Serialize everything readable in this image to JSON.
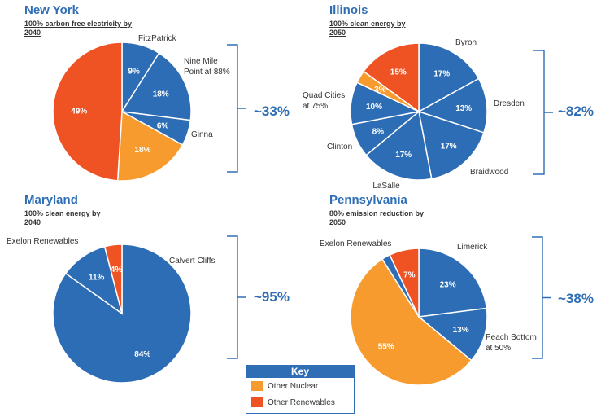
{
  "colors": {
    "exelon_nuclear": "#2d6db5",
    "other_nuclear": "#f89b2e",
    "other_renewables": "#f05323",
    "accent": "#2f6eb5",
    "bracket": "#2f6eb5"
  },
  "chart_data": [
    {
      "type": "pie",
      "title": "New York",
      "subtitle": "100% carbon free electricity by 2040",
      "total_label": "~33%",
      "slices": [
        {
          "label": "FitzPatrick",
          "value": 9,
          "display": "9%",
          "category": "exelon_nuclear"
        },
        {
          "label": "Nine Mile Point at 88%",
          "value": 18,
          "display": "18%",
          "category": "exelon_nuclear"
        },
        {
          "label": "Ginna",
          "value": 6,
          "display": "6%",
          "category": "exelon_nuclear"
        },
        {
          "label": "",
          "value": 18,
          "display": "18%",
          "category": "other_nuclear"
        },
        {
          "label": "",
          "value": 49,
          "display": "49%",
          "category": "other_renewables"
        }
      ]
    },
    {
      "type": "pie",
      "title": "Illinois",
      "subtitle": "100% clean energy by 2050",
      "total_label": "~82%",
      "slices": [
        {
          "label": "Byron",
          "value": 17,
          "display": "17%",
          "category": "exelon_nuclear"
        },
        {
          "label": "Dresden",
          "value": 13,
          "display": "13%",
          "category": "exelon_nuclear"
        },
        {
          "label": "Braidwood",
          "value": 17,
          "display": "17%",
          "category": "exelon_nuclear"
        },
        {
          "label": "LaSalle",
          "value": 17,
          "display": "17%",
          "category": "exelon_nuclear"
        },
        {
          "label": "Clinton",
          "value": 8,
          "display": "8%",
          "category": "exelon_nuclear"
        },
        {
          "label": "Quad Cities at 75%",
          "value": 10,
          "display": "10%",
          "category": "exelon_nuclear"
        },
        {
          "label": "",
          "value": 3,
          "display": "3%",
          "category": "other_nuclear"
        },
        {
          "label": "",
          "value": 15,
          "display": "15%",
          "category": "other_renewables"
        }
      ]
    },
    {
      "type": "pie",
      "title": "Maryland",
      "subtitle": "100% clean energy by 2040",
      "total_label": "~95%",
      "slices": [
        {
          "label": "Calvert Cliffs",
          "value": 84,
          "display": "84%",
          "category": "exelon_nuclear"
        },
        {
          "label": "Exelon Renewables",
          "value": 11,
          "display": "11%",
          "category": "exelon_nuclear"
        },
        {
          "label": "",
          "value": 4,
          "display": "4%",
          "category": "other_renewables"
        }
      ]
    },
    {
      "type": "pie",
      "title": "Pennsylvania",
      "subtitle": "80% emission reduction by 2050",
      "total_label": "~38%",
      "slices": [
        {
          "label": "Limerick",
          "value": 23,
          "display": "23%",
          "category": "exelon_nuclear"
        },
        {
          "label": "Peach Bottom at 50%",
          "value": 13,
          "display": "13%",
          "category": "exelon_nuclear"
        },
        {
          "label": "",
          "value": 55,
          "display": "55%",
          "category": "other_nuclear"
        },
        {
          "label": "Exelon Renewables",
          "value": 2,
          "display": "",
          "category": "exelon_nuclear"
        },
        {
          "label": "",
          "value": 7,
          "display": "7%",
          "category": "other_renewables"
        }
      ]
    }
  ],
  "key": {
    "title": "Key",
    "items": [
      {
        "label": "Other Nuclear",
        "category": "other_nuclear"
      },
      {
        "label": "Other Renewables",
        "category": "other_renewables"
      }
    ]
  }
}
